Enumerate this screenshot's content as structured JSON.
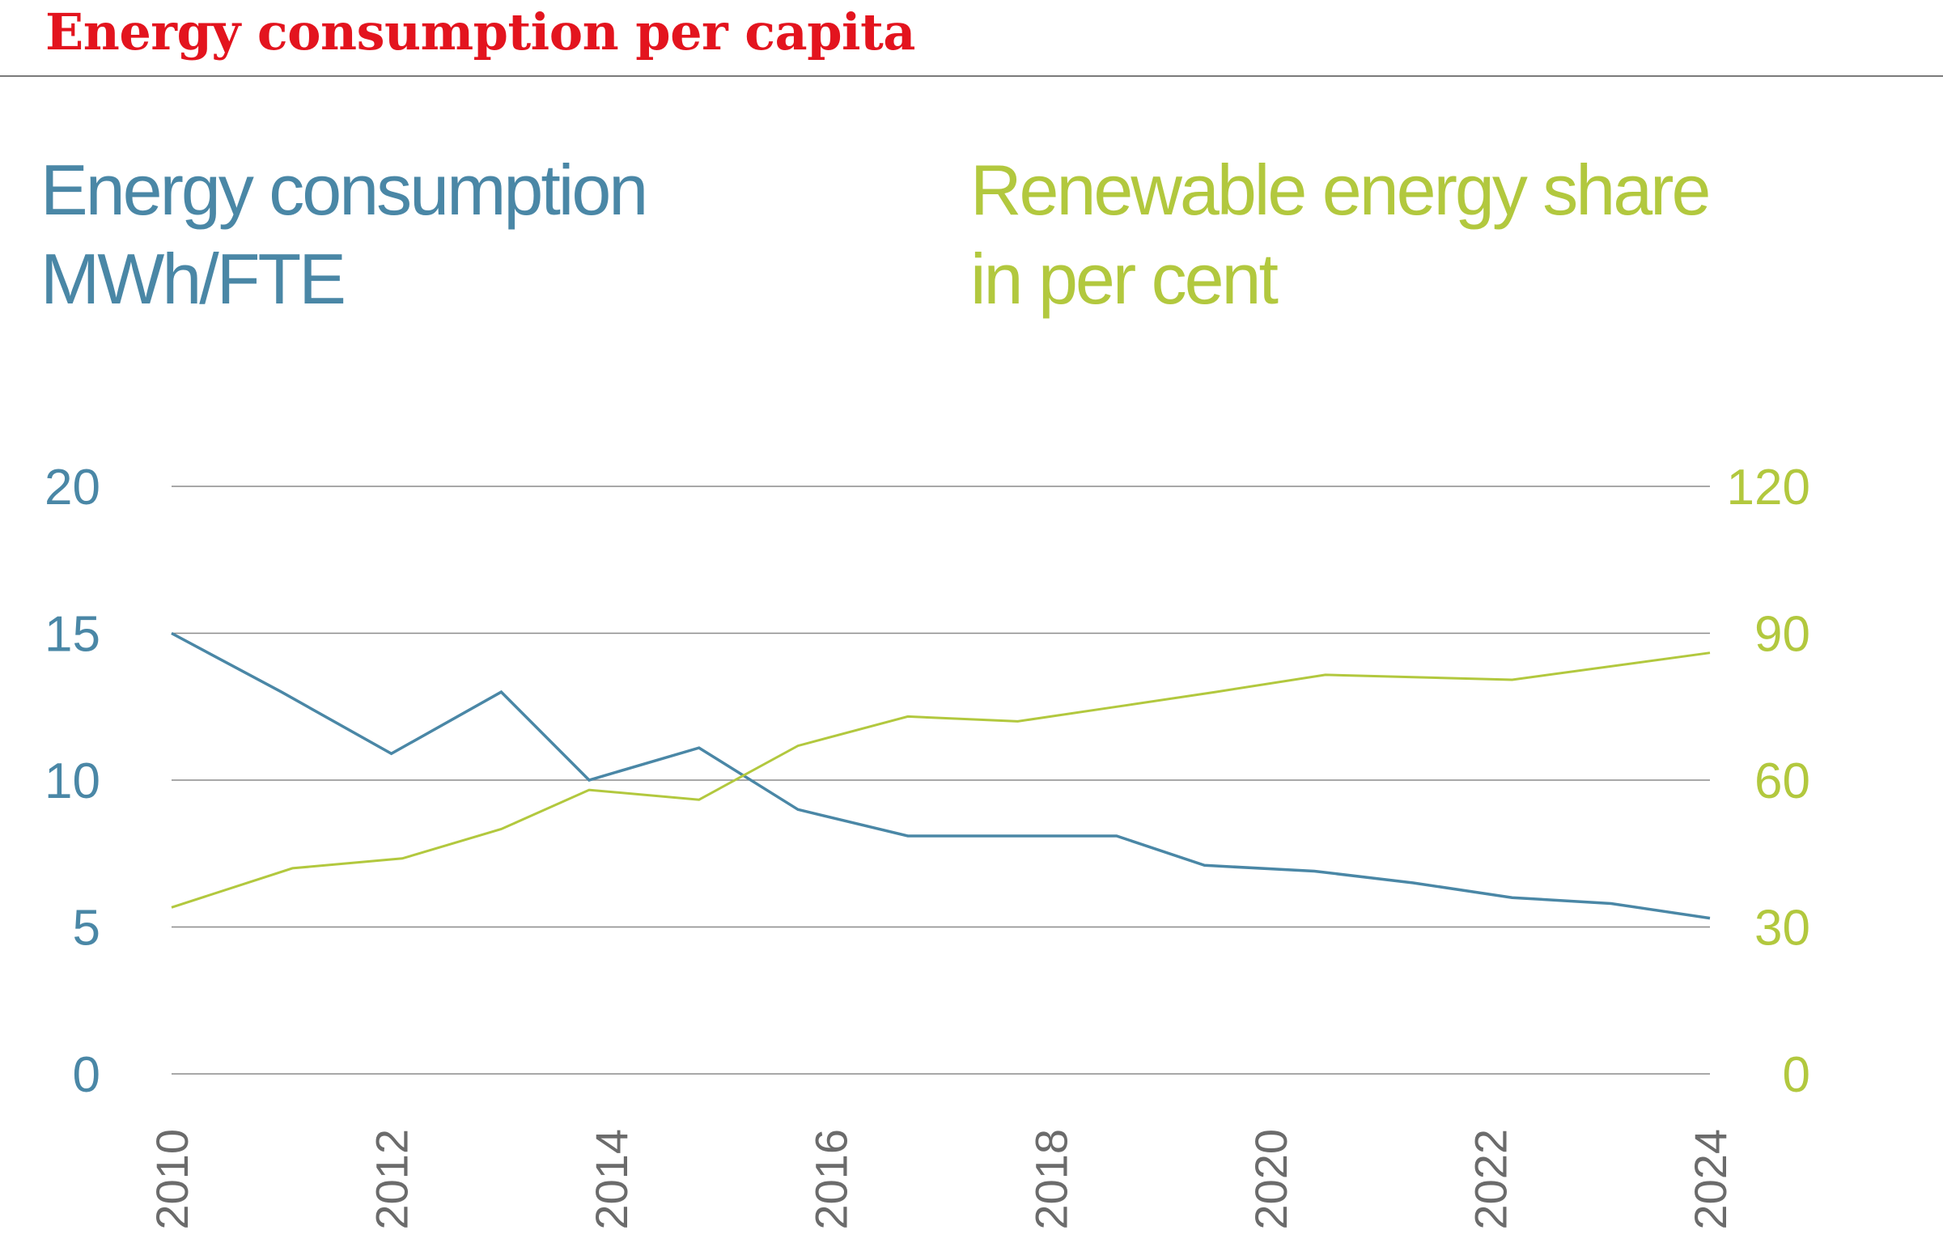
{
  "header": {
    "title": "Energy consumption per capita"
  },
  "chart_data": {
    "type": "line",
    "title": "Energy consumption per capita",
    "left_axis": {
      "label_line1": "Energy consumption",
      "label_line2": "MWh/FTE",
      "ylim": [
        0,
        20
      ],
      "ticks": [
        0,
        5,
        10,
        15,
        20
      ],
      "color": "#4a87a6"
    },
    "right_axis": {
      "label_line1": "Renewable energy share",
      "label_line2": "in per cent",
      "ylim": [
        0,
        120
      ],
      "ticks": [
        0,
        30,
        60,
        90,
        120
      ],
      "color": "#b2c83e"
    },
    "xlim": [
      2010,
      2024
    ],
    "x_ticks": [
      "2010",
      "2012",
      "2014",
      "2016",
      "2018",
      "2020",
      "2022",
      "2024"
    ],
    "grid": true,
    "series": [
      {
        "name": "Energy consumption",
        "axis": "left",
        "color": "#4a87a6",
        "x": [
          2010,
          2011,
          2012,
          2013,
          2013.8,
          2014.8,
          2015.7,
          2016.7,
          2017.7,
          2018.6,
          2019.4,
          2020.4,
          2021.3,
          2022.2,
          2023.1,
          2024
        ],
        "values": [
          15,
          13,
          10.9,
          13,
          10,
          11.1,
          9,
          8.1,
          8.1,
          8.1,
          7.1,
          6.9,
          6.5,
          6,
          5.8,
          5.3
        ]
      },
      {
        "name": "Renewable energy share",
        "axis": "right",
        "color": "#b2c83e",
        "x": [
          2010,
          2011.1,
          2012.1,
          2013,
          2013.8,
          2014.8,
          2015.7,
          2016.7,
          2017.7,
          2018.6,
          2019.5,
          2020.5,
          2022.2,
          2024
        ],
        "values": [
          34,
          42,
          44,
          50,
          58,
          56,
          67,
          73,
          72,
          75,
          78,
          81.5,
          80.5,
          86
        ]
      }
    ]
  }
}
